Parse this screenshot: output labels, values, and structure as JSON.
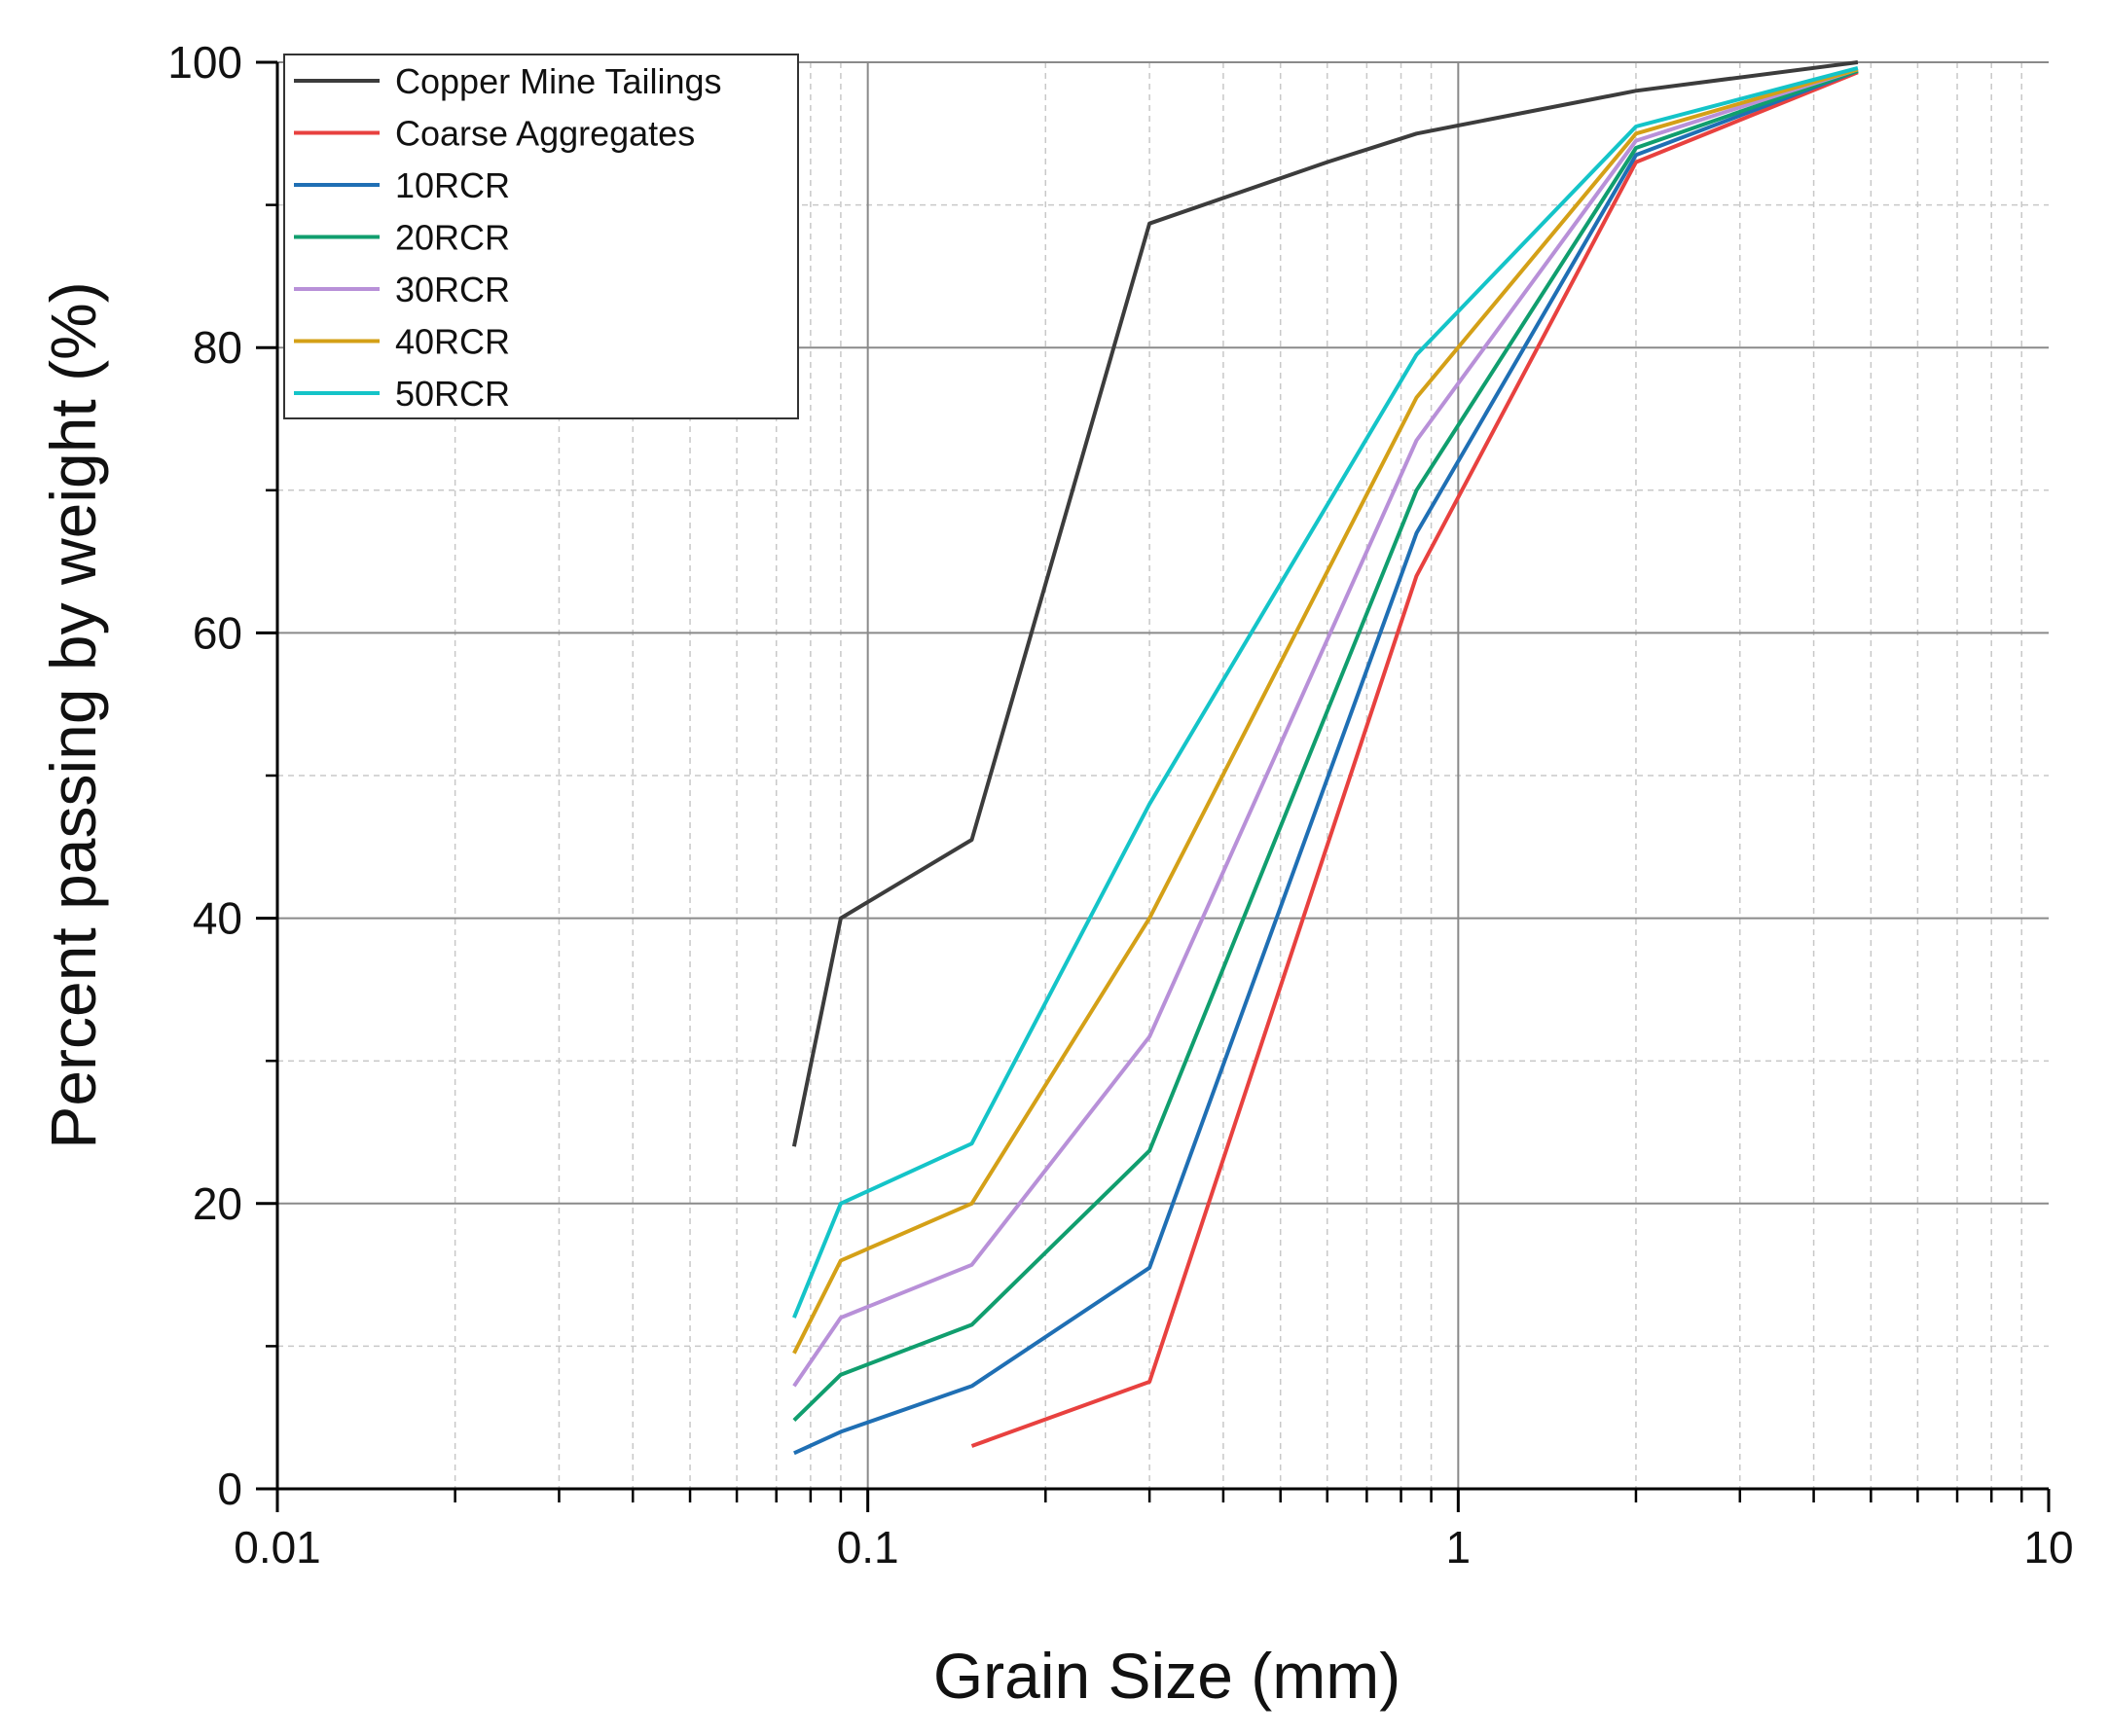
{
  "chart_data": {
    "type": "line",
    "title": "",
    "xlabel": "Grain Size (mm)",
    "ylabel": "Percent passing by weight (%)",
    "xscale": "log",
    "xlim": [
      0.01,
      10
    ],
    "ylim": [
      0,
      100
    ],
    "xticks": [
      {
        "value": 0.01,
        "label": "0.01"
      },
      {
        "value": 0.1,
        "label": "0.1"
      },
      {
        "value": 1,
        "label": "1"
      },
      {
        "value": 10,
        "label": "10"
      }
    ],
    "yticks": [
      {
        "value": 0,
        "label": "0"
      },
      {
        "value": 20,
        "label": "20"
      },
      {
        "value": 40,
        "label": "40"
      },
      {
        "value": 60,
        "label": "60"
      },
      {
        "value": 80,
        "label": "80"
      },
      {
        "value": 100,
        "label": "100"
      }
    ],
    "grid": true,
    "legend_position": "top-left",
    "series": [
      {
        "name": "Copper Mine Tailings",
        "color": "#3c3c3c",
        "x": [
          0.075,
          0.09,
          0.15,
          0.3,
          0.6,
          0.85,
          2.0,
          4.75
        ],
        "y": [
          24,
          40,
          45.5,
          88.7,
          93,
          95,
          98,
          100
        ]
      },
      {
        "name": "Coarse Aggregates",
        "color": "#e8413f",
        "x": [
          0.15,
          0.3,
          0.85,
          2.0,
          4.75
        ],
        "y": [
          3,
          7.5,
          64,
          93,
          99.3
        ]
      },
      {
        "name": "10RCR",
        "color": "#1f6fb4",
        "x": [
          0.075,
          0.09,
          0.15,
          0.3,
          0.85,
          2.0,
          4.75
        ],
        "y": [
          2.5,
          4,
          7.2,
          15.5,
          67,
          93.5,
          99.4
        ]
      },
      {
        "name": "20RCR",
        "color": "#109e6e",
        "x": [
          0.075,
          0.09,
          0.15,
          0.3,
          0.85,
          2.0,
          4.75
        ],
        "y": [
          4.8,
          8,
          11.5,
          23.7,
          70,
          94,
          99.4
        ]
      },
      {
        "name": "30RCR",
        "color": "#b890d8",
        "x": [
          0.075,
          0.09,
          0.15,
          0.3,
          0.85,
          2.0,
          4.75
        ],
        "y": [
          7.2,
          12,
          15.7,
          31.7,
          73.5,
          94.5,
          99.5
        ]
      },
      {
        "name": "40RCR",
        "color": "#d4a017",
        "x": [
          0.075,
          0.09,
          0.15,
          0.3,
          0.85,
          2.0,
          4.75
        ],
        "y": [
          9.5,
          16,
          20,
          40,
          76.5,
          95,
          99.5
        ]
      },
      {
        "name": "50RCR",
        "color": "#14c4c8",
        "x": [
          0.075,
          0.09,
          0.15,
          0.3,
          0.85,
          2.0,
          4.75
        ],
        "y": [
          12,
          20,
          24.2,
          48,
          79.5,
          95.5,
          99.6
        ]
      }
    ]
  }
}
